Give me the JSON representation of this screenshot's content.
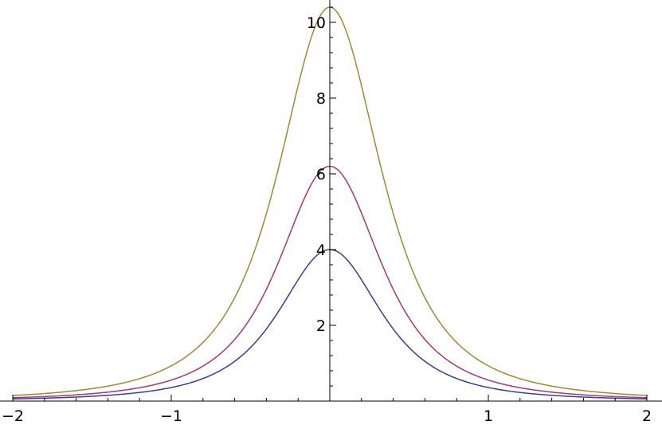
{
  "chart_data": {
    "type": "line",
    "title": "",
    "xlabel": "",
    "ylabel": "",
    "xlim": [
      -2,
      2
    ],
    "ylim": [
      0,
      10.4
    ],
    "x_ticks": [
      {
        "value": -2,
        "label": "−2"
      },
      {
        "value": -1,
        "label": "−1"
      },
      {
        "value": 1,
        "label": "1"
      },
      {
        "value": 2,
        "label": "2"
      }
    ],
    "y_ticks": [
      {
        "value": 2,
        "label": "2"
      },
      {
        "value": 4,
        "label": "4"
      },
      {
        "value": 6,
        "label": "6"
      },
      {
        "value": 8,
        "label": "8"
      },
      {
        "value": 10,
        "label": "10"
      }
    ],
    "x_minor_step": 0.2,
    "y_minor_step": 0.4,
    "grid": false,
    "legend": "none",
    "series": [
      {
        "color": "#3b3b97",
        "peak": 4.0,
        "width": 0.5,
        "x": [
          -2,
          -1.5,
          -1,
          -0.75,
          -0.5,
          -0.25,
          0,
          0.25,
          0.5,
          0.75,
          1,
          1.5,
          2
        ],
        "y": [
          0.06,
          0.11,
          0.4,
          0.82,
          1.6,
          3.1,
          4.0,
          3.1,
          1.6,
          0.82,
          0.4,
          0.11,
          0.06
        ]
      },
      {
        "color": "#a33a6e",
        "peak": 6.2,
        "width": 0.5,
        "x": [
          -2,
          -1.5,
          -1,
          -0.75,
          -0.5,
          -0.25,
          0,
          0.25,
          0.5,
          0.75,
          1,
          1.5,
          2
        ],
        "y": [
          0.09,
          0.16,
          0.62,
          1.27,
          2.5,
          4.8,
          6.2,
          4.8,
          2.5,
          1.27,
          0.62,
          0.16,
          0.09
        ]
      },
      {
        "color": "#9b8a36",
        "peak": 10.4,
        "width": 0.5,
        "x": [
          -2,
          -1.5,
          -1,
          -0.75,
          -0.5,
          -0.25,
          0,
          0.25,
          0.5,
          0.75,
          1,
          1.5,
          2
        ],
        "y": [
          0.14,
          0.27,
          1.04,
          2.1,
          4.1,
          8.1,
          10.4,
          8.1,
          4.1,
          2.1,
          1.04,
          0.27,
          0.14
        ]
      }
    ]
  }
}
